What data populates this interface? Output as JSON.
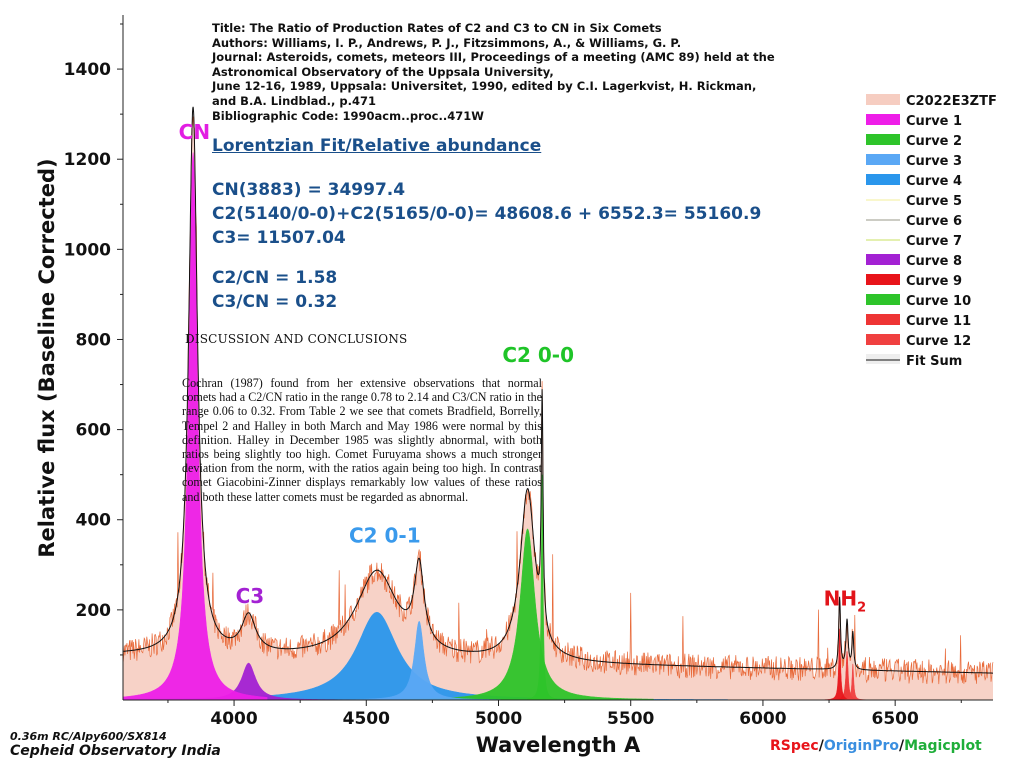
{
  "reference": {
    "lines": [
      "Title: The Ratio of Production Rates of C2 and C3 to CN in Six Comets",
      "Authors: Williams, I. P., Andrews, P. J., Fitzsimmons, A., & Williams, G. P.",
      "Journal: Asteroids, comets, meteors III, Proceedings of a meeting (AMC 89) held at the",
      "Astronomical Observatory of the Uppsala University,",
      "June 12-16, 1989, Uppsala: Universitet, 1990, edited by C.I. Lagerkvist, H. Rickman,",
      "and B.A. Lindblad., p.471",
      "Bibliographic Code: 1990acm..proc..471W"
    ]
  },
  "fit": {
    "heading": "Lorentzian Fit/Relative abundance",
    "lines": [
      "CN(3883) = 34997.4",
      "C2(5140/0-0)+C2(5165/0-0)= 48608.6 + 6552.3= 55160.9",
      "C3= 11507.04",
      "C2/CN = 1.58",
      "C3/CN = 0.32"
    ]
  },
  "discussion": {
    "heading": "DISCUSSION AND CONCLUSIONS",
    "text": "Cochran (1987) found from her extensive observations that normal comets had a C2/CN ratio in the range 0.78 to 2.14 and C3/CN ratio in the range 0.06 to 0.32. From Table 2 we see that comets Bradfield, Borrelly, Tempel 2 and Halley in both March and May 1986 were normal by this definition. Halley in December 1985 was slightly abnormal, with both ratios being slightly too high. Comet Furuyama shows a much stronger deviation from the norm, with the ratios again being too high. In contrast comet Giacobini-Zinner displays remarkably low values of these ratios and both these latter comets must be regarded as abnormal."
  },
  "footer": {
    "equipment": "0.36m RC/Alpy600/SX814",
    "observatory": "Cepheid Observatory India",
    "software": [
      {
        "text": "RSpec",
        "color": "#e8141a"
      },
      {
        "text": "/",
        "color": "#111111"
      },
      {
        "text": "OriginPro",
        "color": "#3a8fe0"
      },
      {
        "text": "/",
        "color": "#111111"
      },
      {
        "text": "Magicplot",
        "color": "#1fae3a"
      }
    ]
  },
  "chart_data": {
    "type": "line",
    "xlabel": "Wavelength A",
    "ylabel": "Relative flux (Baseline Corrected)",
    "xlim": [
      3580,
      6870
    ],
    "ylim": [
      0,
      1520
    ],
    "xticks": [
      4000,
      4500,
      5000,
      5500,
      6000,
      6500
    ],
    "yticks": [
      200,
      400,
      600,
      800,
      1000,
      1200,
      1400
    ],
    "grid": false,
    "legend_position": "right",
    "annotations": [
      {
        "text": "CN",
        "x": 3850,
        "y": 1245,
        "color": "#e21ee2"
      },
      {
        "text": "C3",
        "x": 4060,
        "y": 215,
        "color": "#a321d3"
      },
      {
        "text": "C2 0-1",
        "x": 4570,
        "y": 350,
        "color": "#3a9aec"
      },
      {
        "text": "C2 0-0",
        "x": 5150,
        "y": 750,
        "color": "#1fc428"
      },
      {
        "text": "NH",
        "sub": "2",
        "x": 6310,
        "y": 210,
        "color": "#e2141a"
      }
    ],
    "series": [
      {
        "name": "C2022E3ZTF",
        "color": "#f6cdc1",
        "kind": "observed"
      },
      {
        "name": "Curve 1",
        "color": "#ee1ee8",
        "kind": "lorentzian",
        "center": 3845,
        "amplitude": 1215,
        "width": 20
      },
      {
        "name": "Curve 2",
        "color": "#2ec42a",
        "kind": "lorentzian",
        "center": 5110,
        "amplitude": 380,
        "width": 34
      },
      {
        "name": "Curve 3",
        "color": "#5aa8f5",
        "kind": "lorentzian",
        "center": 4700,
        "amplitude": 175,
        "width": 22
      },
      {
        "name": "Curve 4",
        "color": "#2a96ec",
        "kind": "lorentzian",
        "center": 4540,
        "amplitude": 195,
        "width": 95
      },
      {
        "name": "Curve 5",
        "color": "#f3ef9a",
        "kind": "line"
      },
      {
        "name": "Curve 6",
        "color": "#9a9a8a",
        "kind": "line"
      },
      {
        "name": "Curve 7",
        "color": "#c8e060",
        "kind": "line"
      },
      {
        "name": "Curve 8",
        "color": "#a321d3",
        "kind": "lorentzian",
        "center": 4055,
        "amplitude": 82,
        "width": 32
      },
      {
        "name": "Curve 9",
        "color": "#e8141a",
        "kind": "lorentzian",
        "center": 6290,
        "amplitude": 158,
        "width": 4
      },
      {
        "name": "Curve 10",
        "color": "#2ec42a",
        "kind": "lorentzian",
        "center": 5165,
        "amplitude": 500,
        "width": 4
      },
      {
        "name": "Curve 11",
        "color": "#ee3434",
        "kind": "lorentzian",
        "center": 6318,
        "amplitude": 108,
        "width": 5
      },
      {
        "name": "Curve 12",
        "color": "#f04040",
        "kind": "lorentzian",
        "center": 6340,
        "amplitude": 80,
        "width": 4
      },
      {
        "name": "Fit Sum",
        "color": "#111111",
        "kind": "sum"
      }
    ]
  }
}
